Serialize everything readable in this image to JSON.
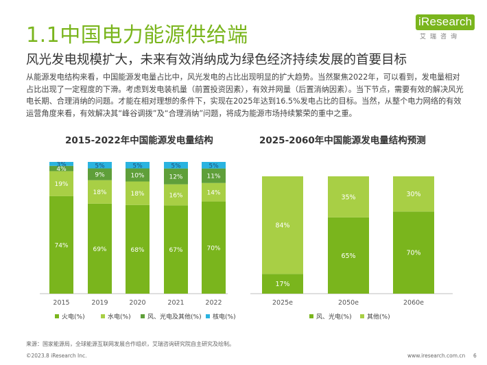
{
  "header": {
    "title": "1.1中国电力能源供给端",
    "logo_word": "iResearch",
    "logo_sub": "艾瑞咨询"
  },
  "subtitle": "风光发电规模扩大，未来有效消纳成为绿色经济持续发展的首要目标",
  "paragraph": "从能源发电结构来看，中国能源发电量占比中，风光发电的占比出现明显的扩大趋势。当然聚焦2022年，可以看到，发电量相对占比出现了一定程度的下滑。考虑到发电装机量（前置投资因素），有效并网量（后置消纳因素）。当下节点，需要有效的解决风光电长期、合理消纳的问题。才能在相对理想的条件下，实现在2025年达到16.5%发电占比的目标。当然，从整个电力网络的有效运营角度来看，有效解决其“峰谷调拨”及“合理消纳”问题，将成为能源市场持续繁荣的重中之重。",
  "colors": {
    "fire": "#7ab51d",
    "water": "#a8cf45",
    "wind": "#5f9f3a",
    "nuclear": "#2ab3e0",
    "wind_solar": "#7ab51d",
    "other": "#a8cf45"
  },
  "chart_data": [
    {
      "type": "bar",
      "stacked": true,
      "title": "2015-2022年中国能源发电量结构",
      "categories": [
        "2015",
        "2019",
        "2020",
        "2021",
        "2022"
      ],
      "ylim": [
        0,
        100
      ],
      "series": [
        {
          "name": "火电(%)",
          "values": [
            74,
            69,
            68,
            67,
            70
          ],
          "labels": [
            "74%",
            "69%",
            "68%",
            "67%",
            "70%"
          ]
        },
        {
          "name": "水电(%)",
          "values": [
            19,
            18,
            18,
            16,
            14
          ],
          "labels": [
            "19%",
            "18%",
            "18%",
            "16%",
            "14%"
          ]
        },
        {
          "name": "风、光电及其他(%)",
          "values": [
            4,
            9,
            10,
            12,
            11
          ],
          "labels": [
            "4%",
            "9%",
            "10%",
            "12%",
            "11%"
          ]
        },
        {
          "name": "核电(%)",
          "values": [
            3,
            5,
            5,
            5,
            5
          ],
          "labels": [
            "3%",
            "5%",
            "5%",
            "5%",
            "5%"
          ]
        }
      ],
      "legend": "bottom"
    },
    {
      "type": "bar",
      "stacked": true,
      "title": "2025-2060年中国能源发电量结构预测",
      "categories": [
        "2025e",
        "2050e",
        "2060e"
      ],
      "ylim": [
        0,
        100
      ],
      "series": [
        {
          "name": "风、光电(%)",
          "values": [
            17,
            65,
            70
          ],
          "labels": [
            "17%",
            "65%",
            "70%"
          ]
        },
        {
          "name": "其他(%)",
          "values": [
            84,
            35,
            30
          ],
          "labels": [
            "84%",
            "35%",
            "30%"
          ]
        }
      ],
      "legend": "bottom"
    }
  ],
  "footer": {
    "source": "来源：国家能源局，全球能源互联网发展合作组织，艾瑞咨询研究院自主研究及绘制。",
    "copyright": "©2023.8 iResearch Inc.",
    "website": "www.iresearch.com.cn",
    "page": "6"
  }
}
